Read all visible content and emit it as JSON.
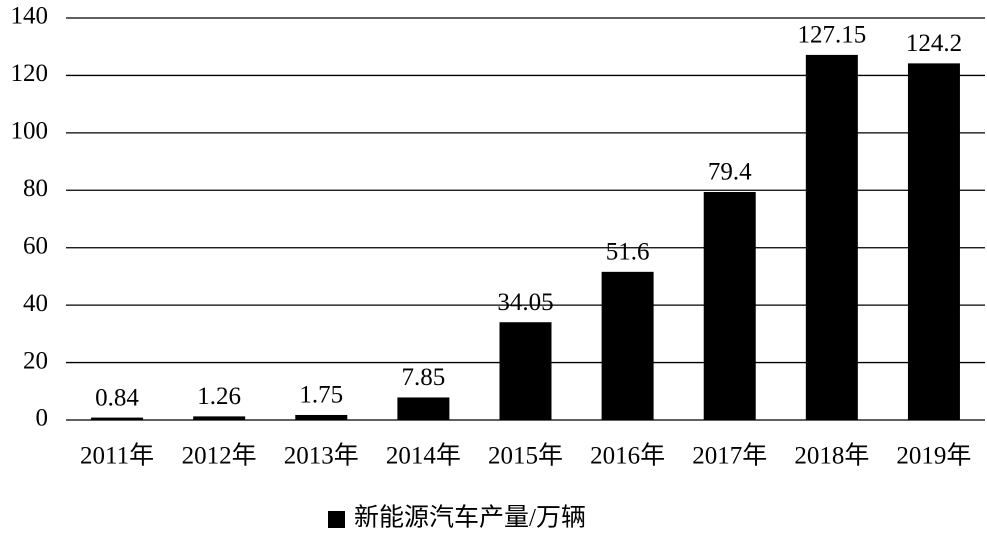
{
  "chart_data": {
    "type": "bar",
    "categories": [
      "2011年",
      "2012年",
      "2013年",
      "2014年",
      "2015年",
      "2016年",
      "2017年",
      "2018年",
      "2019年"
    ],
    "series": [
      {
        "name": "新能源汽车产量/万辆",
        "color": "#000000",
        "values": [
          0.84,
          1.26,
          1.75,
          7.85,
          34.05,
          51.6,
          79.4,
          127.15,
          124.2
        ]
      }
    ],
    "ylim": [
      0,
      140
    ],
    "yticks": [
      0,
      20,
      40,
      60,
      80,
      100,
      120,
      140
    ],
    "grid": true,
    "legend": "bottom"
  }
}
